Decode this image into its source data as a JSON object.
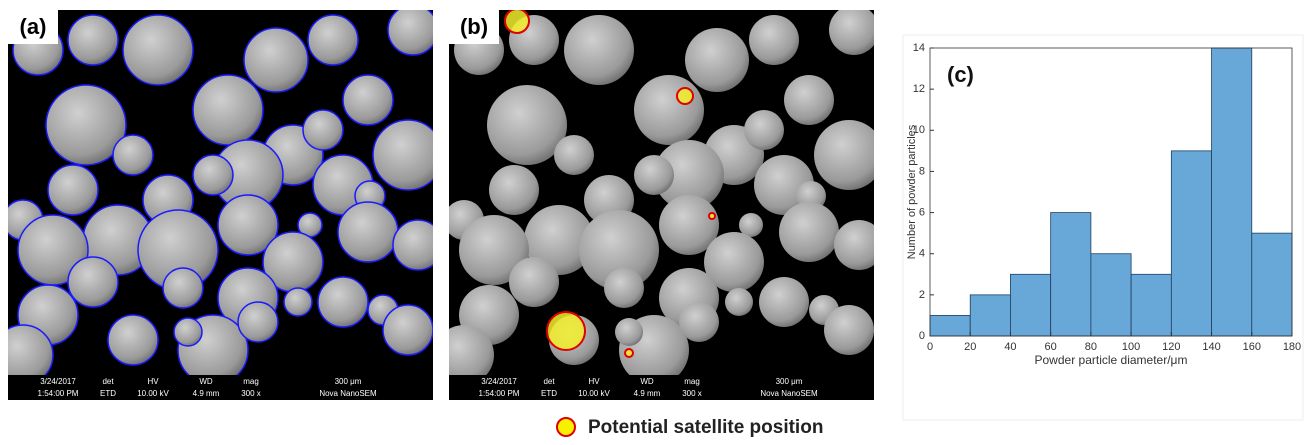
{
  "panels": {
    "a": "(a)",
    "b": "(b)"
  },
  "sem_info": {
    "date": "3/24/2017",
    "time": "1:54:00 PM",
    "det": "det",
    "det_value": "ETD",
    "hv": "HV",
    "hv_value": "10.00 kV",
    "wd": "WD",
    "wd_value": "4.9 mm",
    "mag": "mag",
    "mag_value": "300 x",
    "scale": "300 μm",
    "instrument": "Nova NanoSEM"
  },
  "legend": "Potential satellite position",
  "chart_data": {
    "type": "histogram",
    "label": "(c)",
    "bins": [
      0,
      20,
      40,
      60,
      80,
      100,
      120,
      140,
      160,
      180
    ],
    "values": [
      1,
      2,
      3,
      6,
      4,
      3,
      9,
      14,
      5
    ],
    "color": "#68a8d9",
    "xlabel": "Powder particle diameter/μm",
    "ylabel": "Number of powder particles",
    "xlim": [
      0,
      180
    ],
    "xticks": [
      0,
      20,
      40,
      60,
      80,
      100,
      120,
      140,
      160,
      180
    ],
    "ylim": [
      0,
      14
    ],
    "yticks": [
      0,
      2,
      4,
      6,
      8,
      10,
      12,
      14
    ]
  }
}
